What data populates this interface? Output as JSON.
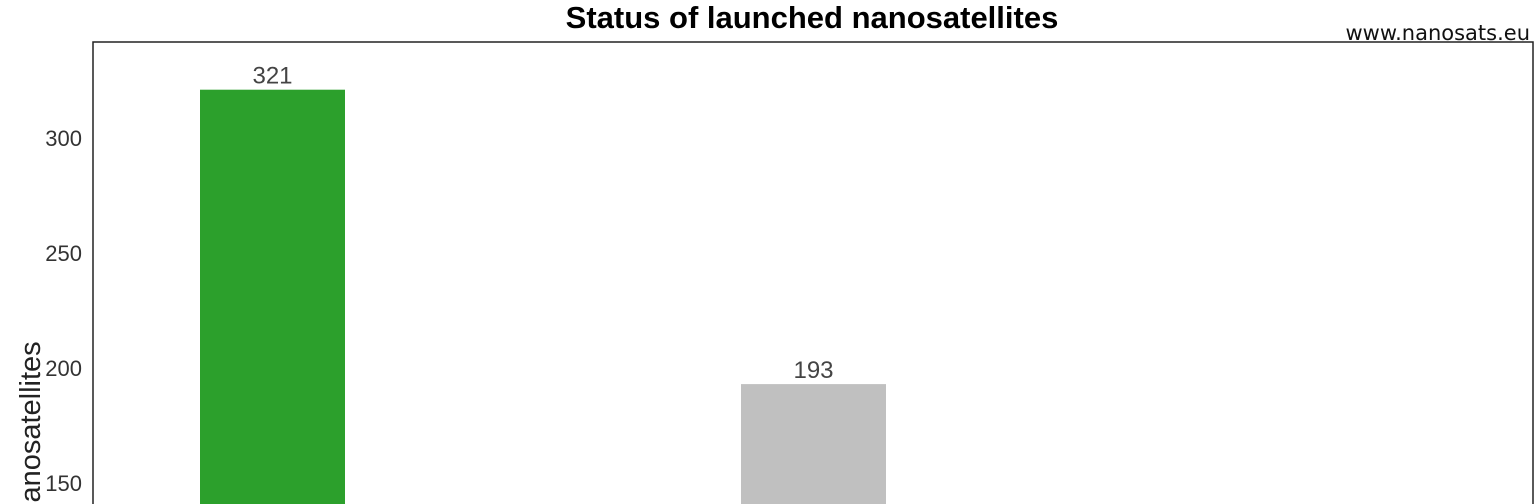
{
  "chart_data": {
    "type": "bar",
    "title": "Status of launched nanosatellites",
    "source_text": "www.nanosats.eu",
    "xlabel": "",
    "ylabel": "nanosatellites",
    "y_ticks": [
      "150",
      "200",
      "250",
      "300"
    ],
    "ylim": [
      130,
      340
    ],
    "grid": false,
    "bars": [
      {
        "value": 321,
        "label": "321",
        "color": "#2ca02c"
      },
      {
        "value": 193,
        "label": "193",
        "color": "#c0c0c0"
      }
    ]
  }
}
